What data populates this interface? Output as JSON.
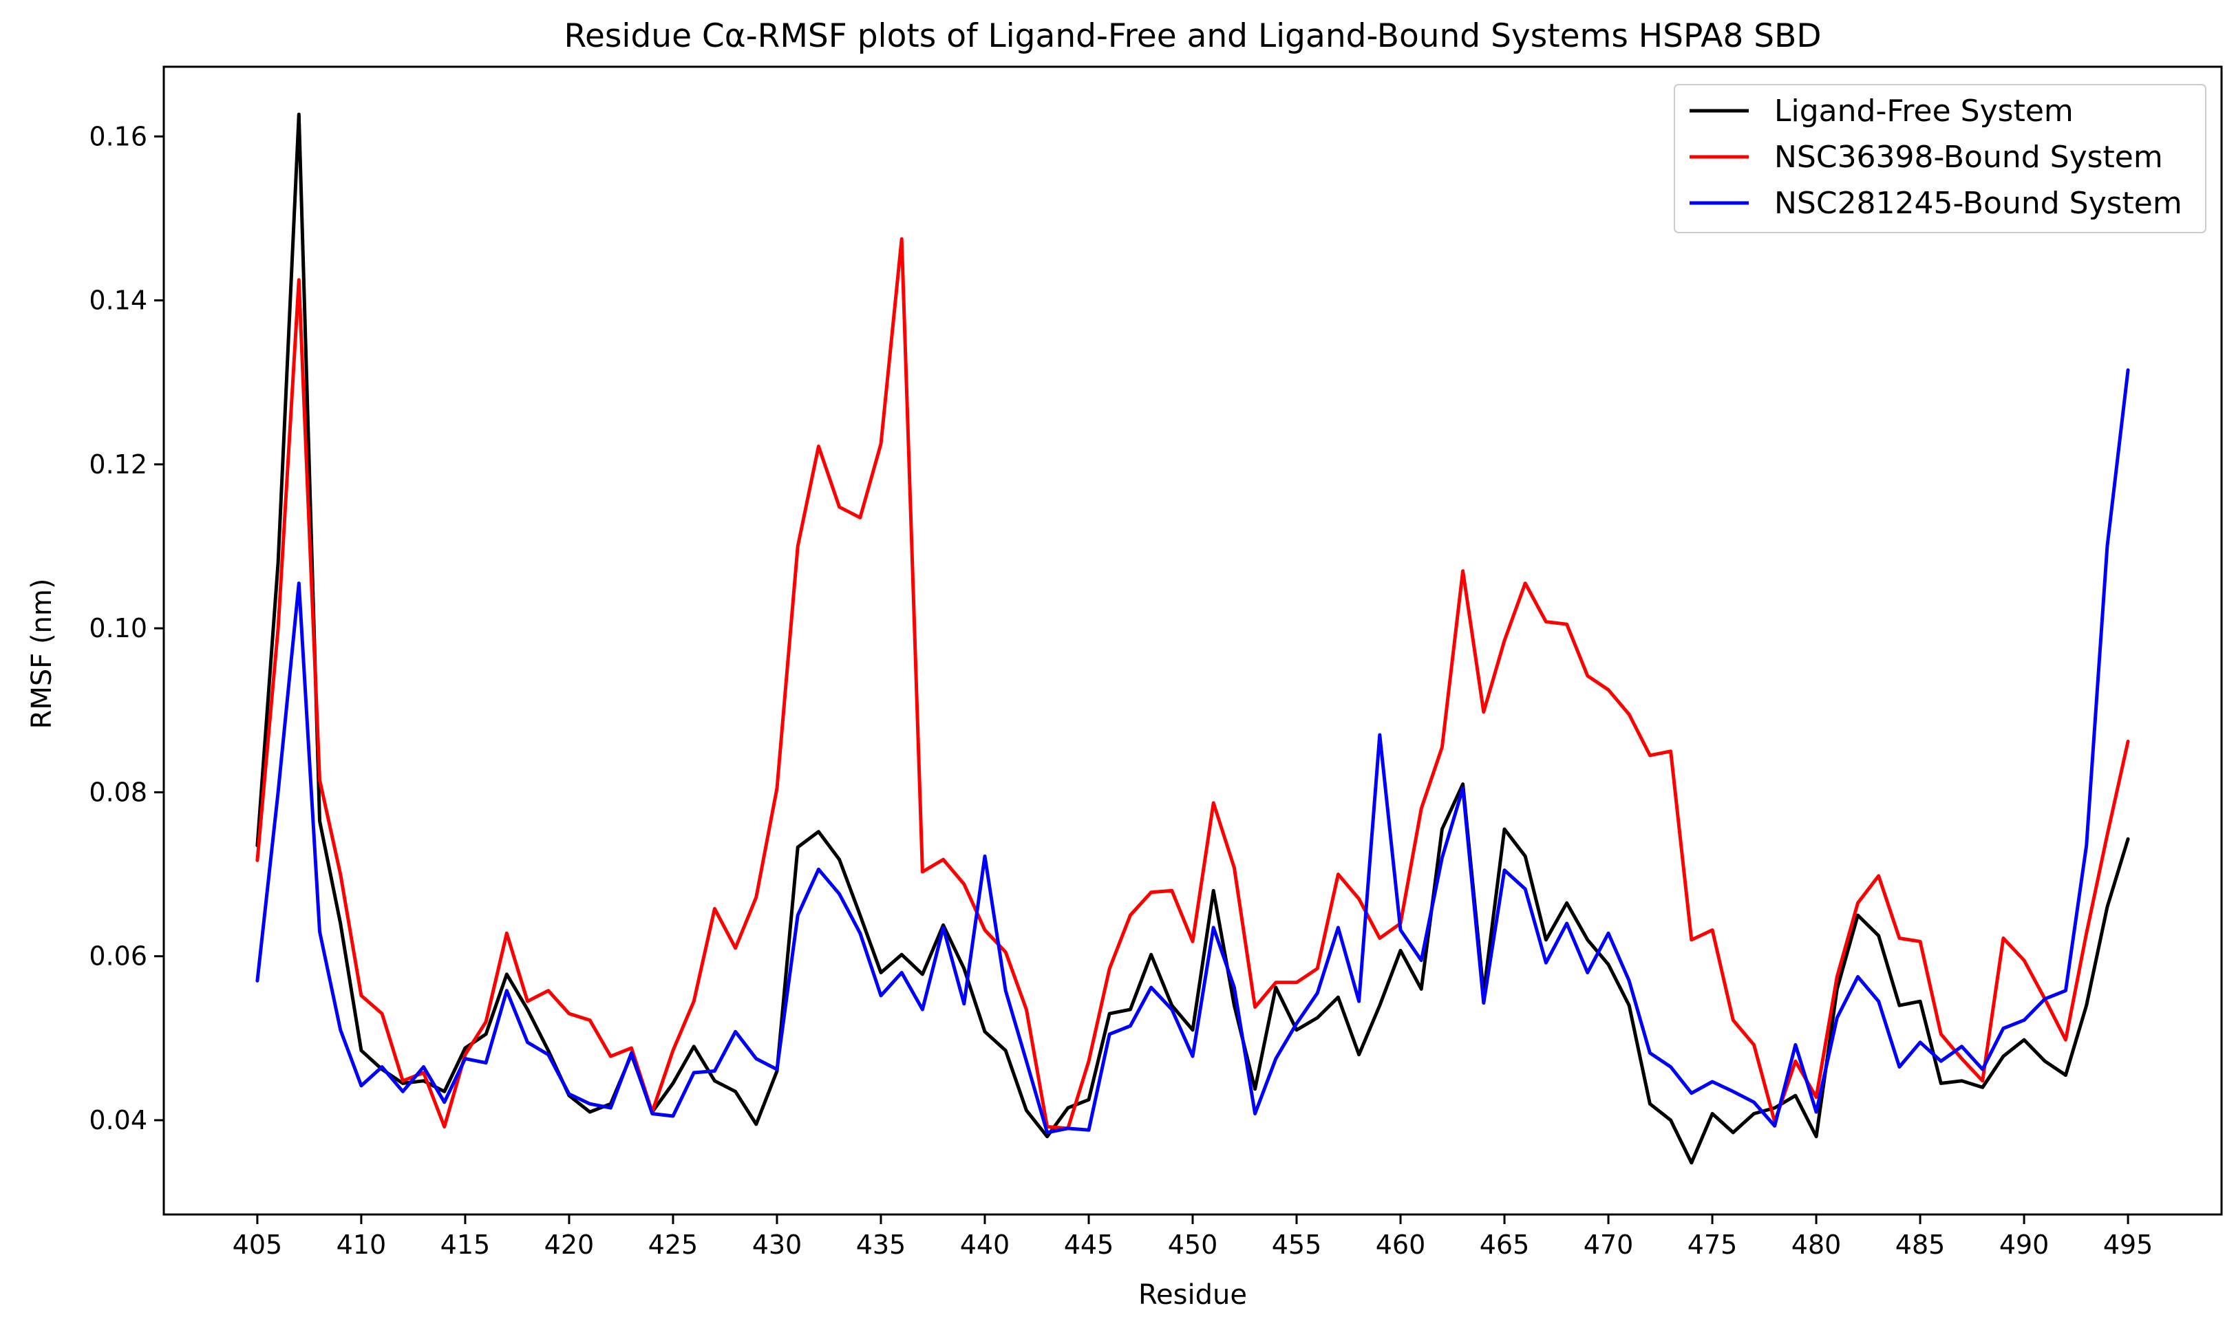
{
  "chart_data": {
    "type": "line",
    "title": "Residue Cα-RMSF plots of Ligand-Free and Ligand-Bound Systems HSPA8 SBD",
    "xlabel": "Residue",
    "ylabel": "RMSF (nm)",
    "xlim": [
      400.5,
      499.5
    ],
    "ylim": [
      0.0285,
      0.1685
    ],
    "xticks": [
      405,
      410,
      415,
      420,
      425,
      430,
      435,
      440,
      445,
      450,
      455,
      460,
      465,
      470,
      475,
      480,
      485,
      490,
      495
    ],
    "yticks": [
      0.04,
      0.06,
      0.08,
      0.1,
      0.12,
      0.14,
      0.16
    ],
    "ytick_labels": [
      "0.04",
      "0.06",
      "0.08",
      "0.10",
      "0.12",
      "0.14",
      "0.16"
    ],
    "grid": false,
    "legend_position": "top-right",
    "x": [
      405,
      406,
      407,
      408,
      409,
      410,
      411,
      412,
      413,
      414,
      415,
      416,
      417,
      418,
      419,
      420,
      421,
      422,
      423,
      424,
      425,
      426,
      427,
      428,
      429,
      430,
      431,
      432,
      433,
      434,
      435,
      436,
      437,
      438,
      439,
      440,
      441,
      442,
      443,
      444,
      445,
      446,
      447,
      448,
      449,
      450,
      451,
      452,
      453,
      454,
      455,
      456,
      457,
      458,
      459,
      460,
      461,
      462,
      463,
      464,
      465,
      466,
      467,
      468,
      469,
      470,
      471,
      472,
      473,
      474,
      475,
      476,
      477,
      478,
      479,
      480,
      481,
      482,
      483,
      484,
      485,
      486,
      487,
      488,
      489,
      490,
      491,
      492,
      493,
      494,
      495
    ],
    "series": [
      {
        "name": "Ligand-Free System",
        "color": "#000000",
        "values": [
          0.0735,
          0.108,
          0.1627,
          0.0765,
          0.064,
          0.0485,
          0.0462,
          0.0445,
          0.0448,
          0.0435,
          0.0488,
          0.0505,
          0.0578,
          0.0535,
          0.0485,
          0.043,
          0.041,
          0.042,
          0.048,
          0.041,
          0.0445,
          0.049,
          0.0448,
          0.0435,
          0.0395,
          0.046,
          0.0733,
          0.0752,
          0.0718,
          0.065,
          0.058,
          0.0602,
          0.0578,
          0.0638,
          0.0585,
          0.0508,
          0.0485,
          0.0412,
          0.038,
          0.0415,
          0.0425,
          0.053,
          0.0535,
          0.0602,
          0.054,
          0.051,
          0.068,
          0.054,
          0.0438,
          0.0562,
          0.051,
          0.0525,
          0.055,
          0.048,
          0.054,
          0.0607,
          0.056,
          0.0755,
          0.081,
          0.0555,
          0.0755,
          0.0722,
          0.062,
          0.0665,
          0.062,
          0.059,
          0.054,
          0.042,
          0.04,
          0.0348,
          0.0408,
          0.0385,
          0.0408,
          0.0415,
          0.043,
          0.038,
          0.056,
          0.065,
          0.0625,
          0.054,
          0.0545,
          0.0445,
          0.0448,
          0.044,
          0.0478,
          0.0498,
          0.0472,
          0.0455,
          0.054,
          0.066,
          0.0743
        ]
      },
      {
        "name": "NSC36398-Bound System",
        "color": "#ff0000",
        "values": [
          0.0717,
          0.1,
          0.1425,
          0.0815,
          0.07,
          0.0552,
          0.053,
          0.0448,
          0.0458,
          0.0392,
          0.048,
          0.052,
          0.0628,
          0.0545,
          0.0558,
          0.053,
          0.0522,
          0.0478,
          0.0488,
          0.041,
          0.0485,
          0.0545,
          0.0658,
          0.061,
          0.0672,
          0.0805,
          0.11,
          0.1222,
          0.1148,
          0.1135,
          0.1225,
          0.1475,
          0.0703,
          0.0718,
          0.0688,
          0.0632,
          0.0605,
          0.0535,
          0.0392,
          0.039,
          0.0472,
          0.0585,
          0.065,
          0.0678,
          0.068,
          0.0618,
          0.0787,
          0.0708,
          0.0538,
          0.0568,
          0.0568,
          0.0585,
          0.07,
          0.067,
          0.0622,
          0.064,
          0.078,
          0.0855,
          0.107,
          0.0898,
          0.0985,
          0.1055,
          0.1008,
          0.1005,
          0.0942,
          0.0925,
          0.0895,
          0.0845,
          0.085,
          0.062,
          0.0632,
          0.0522,
          0.0492,
          0.0398,
          0.0472,
          0.0428,
          0.0575,
          0.0665,
          0.0698,
          0.0622,
          0.0618,
          0.0505,
          0.0475,
          0.0448,
          0.0622,
          0.0595,
          0.0548,
          0.0498,
          0.0628,
          0.0748,
          0.0862
        ]
      },
      {
        "name": "NSC281245-Bound System",
        "color": "#0000ff",
        "values": [
          0.057,
          0.08,
          0.1055,
          0.063,
          0.051,
          0.0442,
          0.0465,
          0.0435,
          0.0465,
          0.0422,
          0.0475,
          0.047,
          0.0558,
          0.0495,
          0.048,
          0.0432,
          0.042,
          0.0415,
          0.0482,
          0.0408,
          0.0405,
          0.0458,
          0.046,
          0.0508,
          0.0475,
          0.0462,
          0.065,
          0.0706,
          0.0676,
          0.0628,
          0.0552,
          0.058,
          0.0535,
          0.0635,
          0.0542,
          0.0722,
          0.0558,
          0.0472,
          0.0385,
          0.039,
          0.0388,
          0.0505,
          0.0515,
          0.0562,
          0.0535,
          0.0478,
          0.0635,
          0.0562,
          0.0408,
          0.0475,
          0.0518,
          0.0555,
          0.0635,
          0.0545,
          0.087,
          0.0632,
          0.0595,
          0.072,
          0.0805,
          0.0543,
          0.0705,
          0.0682,
          0.0592,
          0.064,
          0.058,
          0.0628,
          0.057,
          0.0482,
          0.0465,
          0.0433,
          0.0447,
          0.0435,
          0.0422,
          0.0393,
          0.0492,
          0.041,
          0.0525,
          0.0575,
          0.0545,
          0.0465,
          0.0495,
          0.0472,
          0.049,
          0.0462,
          0.0512,
          0.0522,
          0.0548,
          0.0558,
          0.0735,
          0.11,
          0.1315
        ]
      }
    ]
  }
}
